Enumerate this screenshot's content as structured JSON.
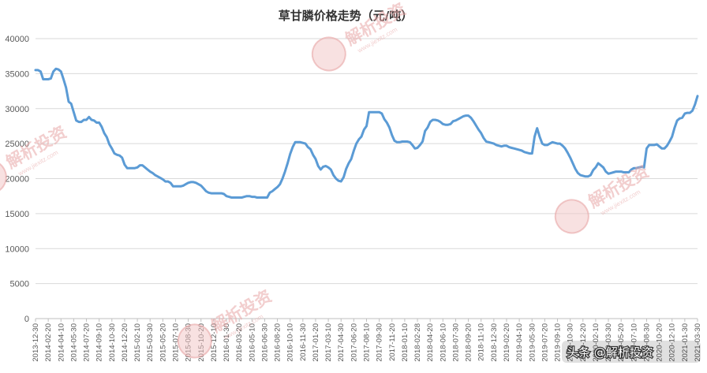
{
  "chart_data": {
    "type": "line",
    "title": "草甘膦价格走势（元/吨）",
    "ylim": [
      0,
      40000
    ],
    "y_ticks": [
      0,
      5000,
      10000,
      15000,
      20000,
      25000,
      30000,
      35000,
      40000
    ],
    "grid": "horizontal",
    "legend": "none",
    "x_labels": [
      "2013-12-30",
      "2014-02-20",
      "2014-04-10",
      "2014-05-30",
      "2014-07-20",
      "2014-09-10",
      "2014-10-30",
      "2014-12-20",
      "2015-02-10",
      "2015-03-30",
      "2015-05-20",
      "2015-07-10",
      "2015-08-30",
      "2015-10-20",
      "2015-12-10",
      "2016-01-30",
      "2016-03-20",
      "2016-05-10",
      "2016-06-30",
      "2016-08-20",
      "2016-10-10",
      "2016-11-30",
      "2017-01-20",
      "2017-03-10",
      "2017-04-30",
      "2017-06-20",
      "2017-08-10",
      "2017-09-30",
      "2017-11-20",
      "2018-01-10",
      "2018-02-28",
      "2018-04-20",
      "2018-06-10",
      "2018-07-30",
      "2018-09-20",
      "2018-11-10",
      "2018-12-30",
      "2019-02-20",
      "2019-04-10",
      "2019-05-30",
      "2019-07-20",
      "2019-09-10",
      "2019-10-30",
      "2019-12-20",
      "2020-02-10",
      "2020-03-30",
      "2020-05-20",
      "2020-07-10",
      "2020-08-30",
      "2020-10-20",
      "2020-12-10",
      "2021-01-30",
      "2021-03-30"
    ],
    "series": [
      {
        "color": "#5b9bd5",
        "values": [
          35500,
          35500,
          35300,
          34200,
          34200,
          34200,
          34300,
          35300,
          35700,
          35600,
          35300,
          34200,
          33000,
          31000,
          30700,
          29500,
          28300,
          28100,
          28100,
          28400,
          28400,
          28800,
          28400,
          28300,
          28000,
          28000,
          27400,
          26500,
          25900,
          24900,
          24300,
          23600,
          23400,
          23300,
          23000,
          22000,
          21500,
          21500,
          21500,
          21500,
          21600,
          21900,
          21900,
          21600,
          21300,
          21000,
          20800,
          20500,
          20300,
          20100,
          19900,
          19600,
          19600,
          19400,
          18900,
          18900,
          18900,
          18900,
          19000,
          19200,
          19400,
          19500,
          19500,
          19400,
          19200,
          19000,
          18600,
          18200,
          18000,
          17900,
          17900,
          17900,
          17900,
          17900,
          17800,
          17500,
          17400,
          17300,
          17300,
          17300,
          17300,
          17300,
          17400,
          17500,
          17500,
          17400,
          17400,
          17300,
          17300,
          17300,
          17300,
          17300,
          18000,
          18200,
          18500,
          18800,
          19200,
          20000,
          21000,
          22200,
          23500,
          24500,
          25200,
          25200,
          25200,
          25100,
          25000,
          24500,
          24200,
          23400,
          22800,
          21800,
          21300,
          21700,
          21800,
          21600,
          21300,
          20500,
          20000,
          19700,
          19600,
          20200,
          21400,
          22200,
          22800,
          24000,
          25000,
          25600,
          26000,
          27000,
          27500,
          29500,
          29500,
          29500,
          29500,
          29500,
          29300,
          28500,
          28000,
          27300,
          26200,
          25400,
          25200,
          25200,
          25300,
          25300,
          25300,
          25200,
          24800,
          24300,
          24400,
          24800,
          25300,
          26800,
          27300,
          28100,
          28400,
          28400,
          28300,
          28100,
          27800,
          27700,
          27700,
          27800,
          28200,
          28300,
          28500,
          28700,
          28900,
          29000,
          29000,
          28700,
          28200,
          27600,
          27000,
          26500,
          25800,
          25300,
          25200,
          25100,
          25000,
          24800,
          24700,
          24600,
          24700,
          24700,
          24500,
          24400,
          24300,
          24200,
          24100,
          24000,
          23800,
          23700,
          23600,
          23600,
          26000,
          27200,
          26000,
          25000,
          24800,
          24800,
          25000,
          25200,
          25100,
          25000,
          25000,
          24700,
          24300,
          23700,
          23000,
          22200,
          21400,
          20800,
          20500,
          20400,
          20300,
          20300,
          20500,
          21200,
          21600,
          22200,
          21900,
          21600,
          21000,
          20700,
          20800,
          20900,
          21000,
          21000,
          21000,
          20900,
          20900,
          20900,
          21300,
          21500,
          21500,
          21600,
          21700,
          21600,
          24300,
          24800,
          24800,
          24800,
          24900,
          24600,
          24300,
          24300,
          24700,
          25300,
          26000,
          27300,
          28300,
          28600,
          28700,
          29300,
          29400,
          29400,
          29700,
          30600,
          31800
        ]
      }
    ]
  },
  "watermarks": [
    {
      "text": "解析投资",
      "sub": "www.jiexitz.com"
    },
    {
      "text": "解析投资",
      "sub": "www.jiexitz.com"
    },
    {
      "text": "解析投资",
      "sub": "www.jiexitz.com"
    },
    {
      "text": "解析投资",
      "sub": "www.jiexitz.com"
    }
  ],
  "signature": {
    "text": "头条 @解析投资"
  }
}
